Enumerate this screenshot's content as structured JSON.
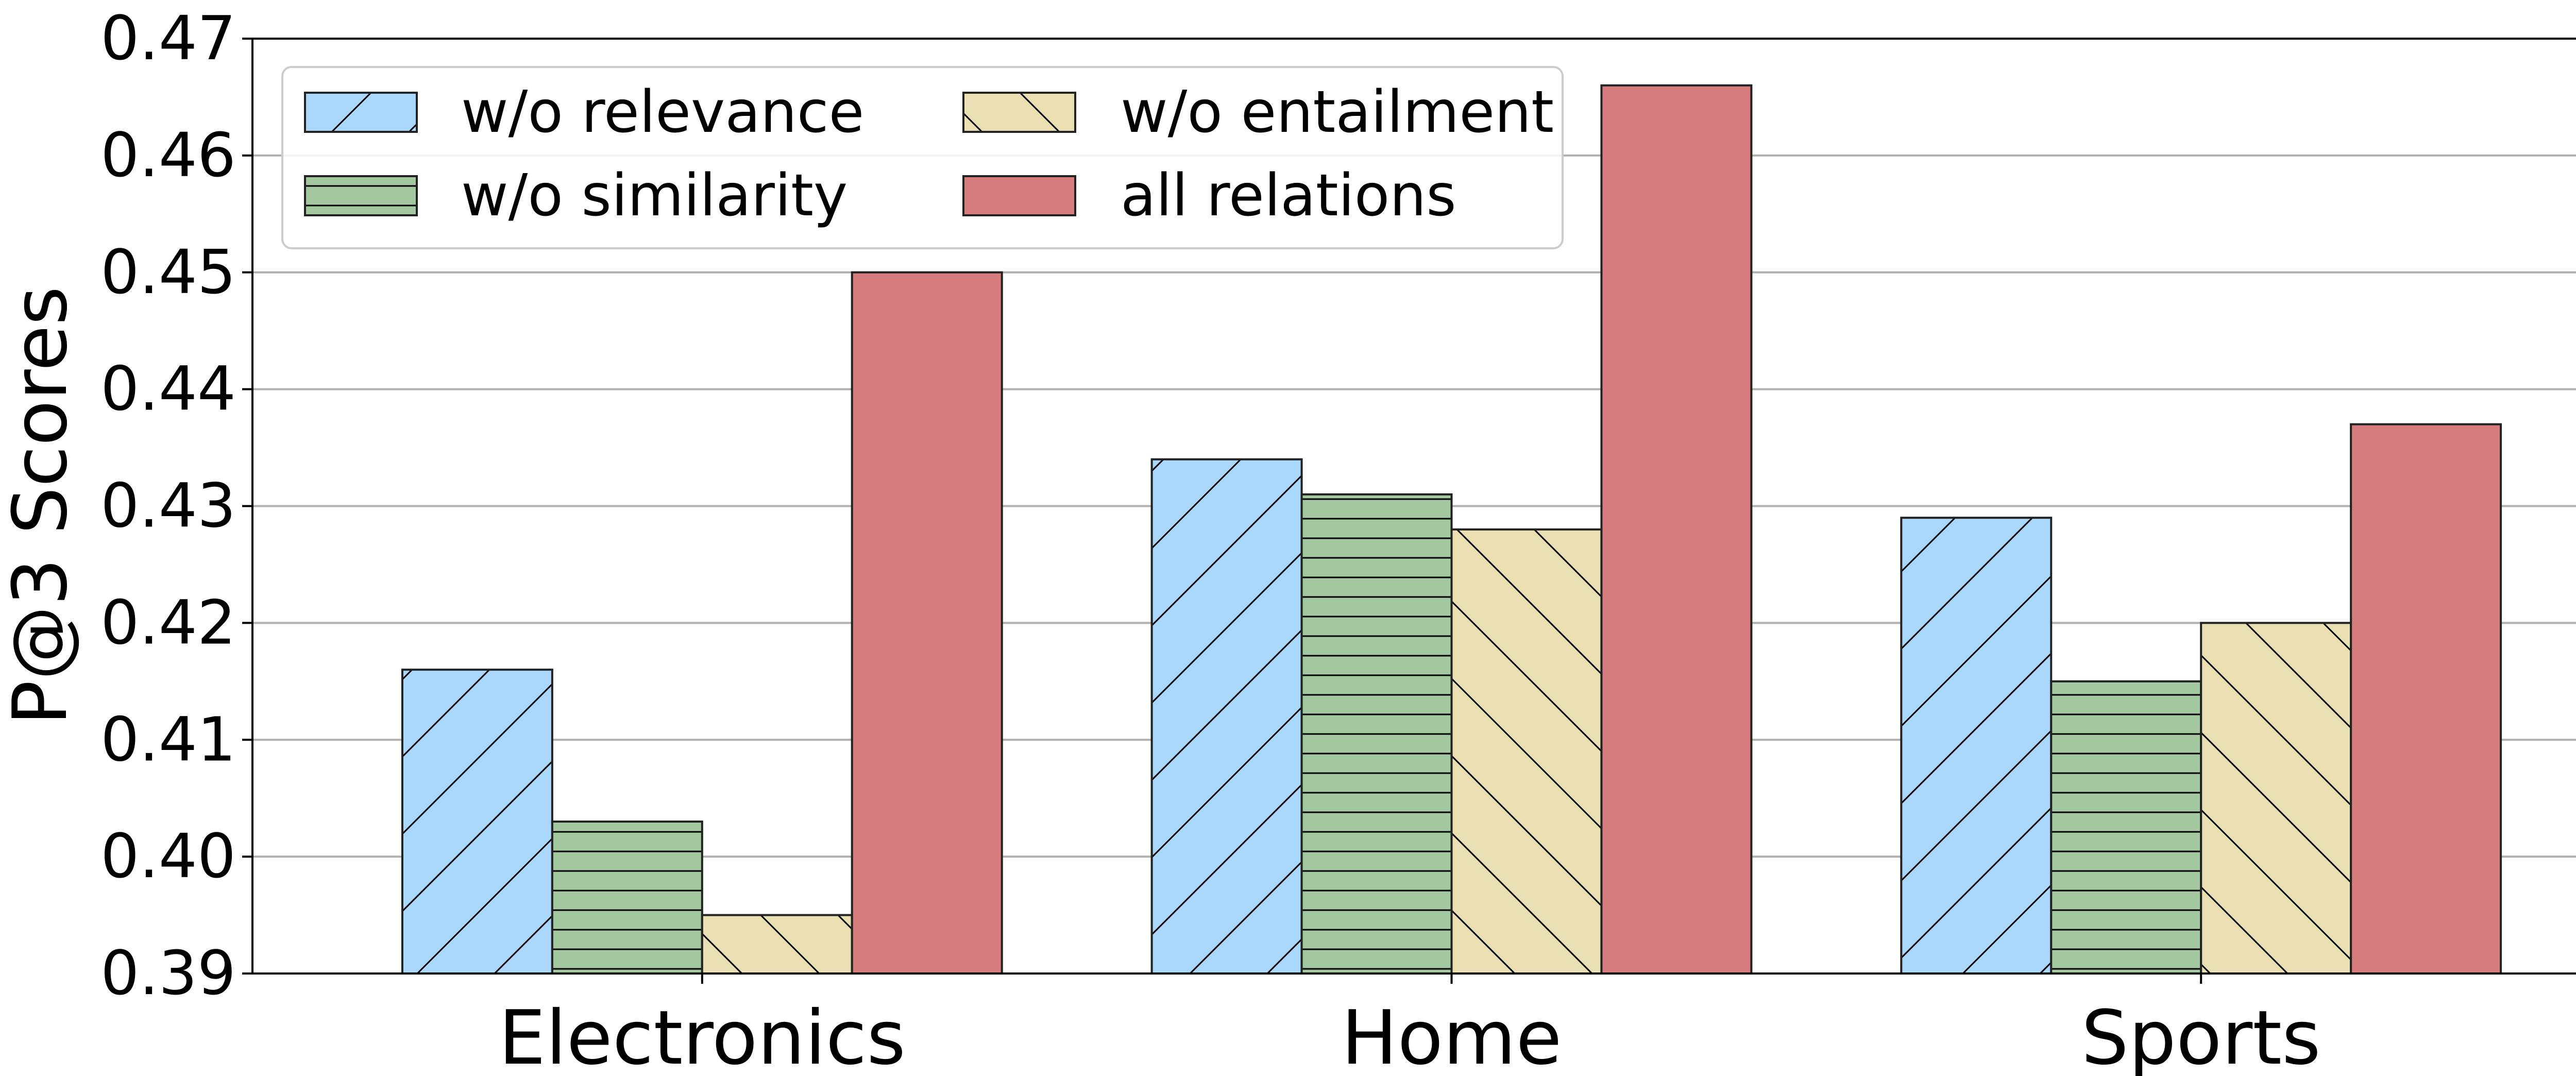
{
  "chart_data": {
    "type": "bar",
    "title": "",
    "xlabel": "",
    "ylabel": "P@3 Scores",
    "ylim": [
      0.39,
      0.47
    ],
    "yticks": [
      "0.39",
      "0.40",
      "0.41",
      "0.42",
      "0.43",
      "0.44",
      "0.45",
      "0.46",
      "0.47"
    ],
    "grid": "horizontal",
    "legend_position": "top-left",
    "categories": [
      "Electronics",
      "Home",
      "Sports"
    ],
    "series": [
      {
        "name": "w/o relevance",
        "values": [
          0.416,
          0.434,
          0.429
        ],
        "color": "#aad8fc",
        "hatch": "forward-diagonal"
      },
      {
        "name": "w/o similarity",
        "values": [
          0.403,
          0.431,
          0.415
        ],
        "color": "#a3c79f",
        "hatch": "horizontal"
      },
      {
        "name": "w/o entailment",
        "values": [
          0.395,
          0.428,
          0.42
        ],
        "color": "#e9dfb3",
        "hatch": "backward-diagonal"
      },
      {
        "name": "all relations",
        "values": [
          0.45,
          0.466,
          0.437
        ],
        "color": "#d67c7c",
        "hatch": "none"
      }
    ]
  }
}
